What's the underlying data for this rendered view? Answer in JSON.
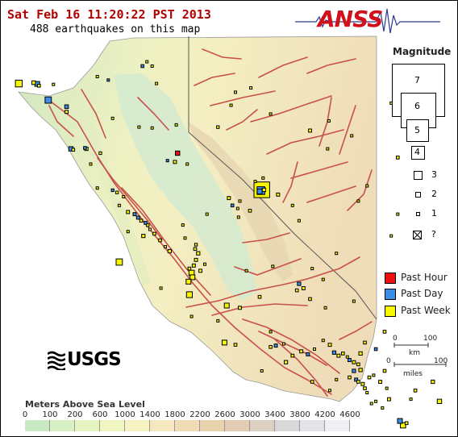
{
  "header": {
    "title": "Sat Feb 16 11:20:22 PST 2013",
    "count_text": "488 earthquakes on this map"
  },
  "logos": {
    "anss": "ANSS",
    "usgs": "USGS"
  },
  "magnitude_legend": {
    "title": "Magnitude",
    "levels": [
      "7",
      "6",
      "5",
      "4",
      "3",
      "2",
      "1"
    ],
    "unknown": "?"
  },
  "age_legend": [
    {
      "label": "Past Hour",
      "color": "#ee1111"
    },
    {
      "label": "Past Day",
      "color": "#3b8ee8"
    },
    {
      "label": "Past Week",
      "color": "#f7f700"
    }
  ],
  "scale": {
    "zero": "0",
    "hundred": "100",
    "km": "km",
    "miles": "miles"
  },
  "elevation": {
    "title": "Meters Above Sea Level",
    "ticks": [
      "0",
      "100",
      "200",
      "600",
      "1000",
      "1400",
      "1800",
      "2200",
      "2600",
      "3000",
      "3400",
      "3800",
      "4200",
      "4600"
    ],
    "colors": [
      "#c9e9c4",
      "#d8efc4",
      "#e6f4c2",
      "#f1f5c2",
      "#f7f2c2",
      "#f6e8be",
      "#efdcb6",
      "#e9d2ae",
      "#e3cdb2",
      "#dcd0c4",
      "#d8d8d8",
      "#e4e4e8",
      "#f0f0f4"
    ]
  },
  "map": {
    "colors": {
      "ocean": "#ffffff",
      "land_low": "#c8e6be",
      "land_mid": "#f3f2c4",
      "land_high": "#ecd8b4",
      "fault": "#c8504a",
      "border": "#555555"
    },
    "quakes": [
      {
        "lon": -124.34,
        "lat": 40.3,
        "mag": 2.8,
        "age": "week"
      },
      {
        "lon": -124.0,
        "lat": 40.32,
        "mag": 1.5,
        "age": "week"
      },
      {
        "lon": -123.92,
        "lat": 40.29,
        "mag": 2.0,
        "age": "day"
      },
      {
        "lon": -123.88,
        "lat": 40.25,
        "mag": 1.2,
        "age": "week"
      },
      {
        "lon": -123.55,
        "lat": 40.28,
        "mag": 1.0,
        "age": "week"
      },
      {
        "lon": -123.67,
        "lat": 39.92,
        "mag": 2.6,
        "age": "day"
      },
      {
        "lon": -123.25,
        "lat": 39.77,
        "mag": 1.5,
        "age": "day"
      },
      {
        "lon": -123.25,
        "lat": 39.65,
        "mag": 1.3,
        "age": "week"
      },
      {
        "lon": -123.15,
        "lat": 38.8,
        "mag": 1.8,
        "age": "day"
      },
      {
        "lon": -123.1,
        "lat": 38.78,
        "mag": 1.2,
        "age": "week"
      },
      {
        "lon": -122.8,
        "lat": 38.8,
        "mag": 1.4,
        "age": "week"
      },
      {
        "lon": -122.83,
        "lat": 38.82,
        "mag": 1.2,
        "age": "day"
      },
      {
        "lon": -122.48,
        "lat": 38.7,
        "mag": 1.1,
        "age": "week"
      },
      {
        "lon": -122.7,
        "lat": 38.45,
        "mag": 1.0,
        "age": "week"
      },
      {
        "lon": -122.55,
        "lat": 40.46,
        "mag": 1.0,
        "age": "week"
      },
      {
        "lon": -122.3,
        "lat": 40.38,
        "mag": 1.0,
        "age": "day"
      },
      {
        "lon": -121.52,
        "lat": 40.7,
        "mag": 1.2,
        "age": "day"
      },
      {
        "lon": -121.42,
        "lat": 40.8,
        "mag": 1.0,
        "age": "week"
      },
      {
        "lon": -121.3,
        "lat": 40.7,
        "mag": 1.0,
        "age": "week"
      },
      {
        "lon": -121.2,
        "lat": 40.3,
        "mag": 1.0,
        "age": "week"
      },
      {
        "lon": -122.2,
        "lat": 39.5,
        "mag": 1.0,
        "age": "week"
      },
      {
        "lon": -121.6,
        "lat": 39.3,
        "mag": 1.0,
        "age": "week"
      },
      {
        "lon": -121.3,
        "lat": 39.28,
        "mag": 1.0,
        "age": "week"
      },
      {
        "lon": -120.75,
        "lat": 39.35,
        "mag": 1.0,
        "age": "week"
      },
      {
        "lon": -119.8,
        "lat": 39.3,
        "mag": 1.1,
        "age": "week"
      },
      {
        "lon": -119.4,
        "lat": 40.1,
        "mag": 1.0,
        "age": "week"
      },
      {
        "lon": -119.5,
        "lat": 39.8,
        "mag": 1.0,
        "age": "week"
      },
      {
        "lon": -118.6,
        "lat": 39.6,
        "mag": 1.0,
        "age": "week"
      },
      {
        "lon": -117.7,
        "lat": 39.22,
        "mag": 1.3,
        "age": "week"
      },
      {
        "lon": -117.27,
        "lat": 39.44,
        "mag": 1.0,
        "age": "week"
      },
      {
        "lon": -117.3,
        "lat": 38.8,
        "mag": 1.0,
        "age": "week"
      },
      {
        "lon": -115.85,
        "lat": 39.85,
        "mag": 1.0,
        "age": "week"
      },
      {
        "lon": -115.75,
        "lat": 39.72,
        "mag": 1.0,
        "age": "week"
      },
      {
        "lon": -115.7,
        "lat": 38.6,
        "mag": 1.2,
        "age": "week"
      },
      {
        "lon": -116.4,
        "lat": 37.95,
        "mag": 1.0,
        "age": "week"
      },
      {
        "lon": -116.6,
        "lat": 37.6,
        "mag": 1.0,
        "age": "week"
      },
      {
        "lon": -120.72,
        "lat": 38.7,
        "mag": 1.8,
        "age": "hour"
      },
      {
        "lon": -120.95,
        "lat": 38.53,
        "mag": 1.0,
        "age": "day"
      },
      {
        "lon": -120.78,
        "lat": 38.5,
        "mag": 1.3,
        "age": "week"
      },
      {
        "lon": -120.5,
        "lat": 38.45,
        "mag": 1.0,
        "age": "week"
      },
      {
        "lon": -118.8,
        "lat": 37.86,
        "mag": 4.4,
        "age": "week"
      },
      {
        "lon": -118.82,
        "lat": 37.84,
        "mag": 3.1,
        "age": "day"
      },
      {
        "lon": -118.85,
        "lat": 37.82,
        "mag": 2.0,
        "age": "day"
      },
      {
        "lon": -118.75,
        "lat": 37.86,
        "mag": 1.4,
        "age": "week"
      },
      {
        "lon": -118.43,
        "lat": 37.75,
        "mag": 1.3,
        "age": "week"
      },
      {
        "lon": -118.77,
        "lat": 38.13,
        "mag": 1.0,
        "age": "week"
      },
      {
        "lon": -118.95,
        "lat": 38.05,
        "mag": 1.0,
        "age": "week"
      },
      {
        "lon": -118.1,
        "lat": 37.5,
        "mag": 1.0,
        "age": "week"
      },
      {
        "lon": -119.55,
        "lat": 37.67,
        "mag": 1.3,
        "age": "week"
      },
      {
        "lon": -119.3,
        "lat": 37.6,
        "mag": 1.0,
        "age": "week"
      },
      {
        "lon": -119.47,
        "lat": 37.5,
        "mag": 1.2,
        "age": "day"
      },
      {
        "lon": -119.35,
        "lat": 37.43,
        "mag": 1.0,
        "age": "week"
      },
      {
        "lon": -119.07,
        "lat": 37.38,
        "mag": 1.2,
        "age": "week"
      },
      {
        "lon": -119.33,
        "lat": 37.23,
        "mag": 1.0,
        "age": "week"
      },
      {
        "lon": -122.55,
        "lat": 37.9,
        "mag": 1.0,
        "age": "week"
      },
      {
        "lon": -122.2,
        "lat": 37.85,
        "mag": 1.1,
        "age": "day"
      },
      {
        "lon": -122.1,
        "lat": 37.8,
        "mag": 1.1,
        "age": "week"
      },
      {
        "lon": -121.95,
        "lat": 37.7,
        "mag": 1.0,
        "age": "week"
      },
      {
        "lon": -122.05,
        "lat": 37.5,
        "mag": 1.0,
        "age": "week"
      },
      {
        "lon": -121.85,
        "lat": 37.35,
        "mag": 1.3,
        "age": "week"
      },
      {
        "lon": -121.7,
        "lat": 37.3,
        "mag": 1.3,
        "age": "day"
      },
      {
        "lon": -121.62,
        "lat": 37.22,
        "mag": 1.3,
        "age": "day"
      },
      {
        "lon": -121.55,
        "lat": 37.15,
        "mag": 1.2,
        "age": "week"
      },
      {
        "lon": -121.45,
        "lat": 37.1,
        "mag": 1.2,
        "age": "day"
      },
      {
        "lon": -121.4,
        "lat": 37.05,
        "mag": 1.2,
        "age": "week"
      },
      {
        "lon": -121.35,
        "lat": 36.95,
        "mag": 1.0,
        "age": "week"
      },
      {
        "lon": -121.25,
        "lat": 36.85,
        "mag": 1.2,
        "age": "week"
      },
      {
        "lon": -121.12,
        "lat": 36.7,
        "mag": 1.2,
        "age": "week"
      },
      {
        "lon": -121.0,
        "lat": 36.55,
        "mag": 1.0,
        "age": "week"
      },
      {
        "lon": -120.9,
        "lat": 36.45,
        "mag": 1.4,
        "age": "week"
      },
      {
        "lon": -121.85,
        "lat": 36.9,
        "mag": 1.0,
        "age": "week"
      },
      {
        "lon": -121.5,
        "lat": 36.8,
        "mag": 1.4,
        "age": "week"
      },
      {
        "lon": -122.05,
        "lat": 36.2,
        "mag": 2.6,
        "age": "week"
      },
      {
        "lon": -120.55,
        "lat": 36.75,
        "mag": 1.0,
        "age": "week"
      },
      {
        "lon": -120.3,
        "lat": 36.6,
        "mag": 1.1,
        "age": "week"
      },
      {
        "lon": -120.32,
        "lat": 36.5,
        "mag": 1.2,
        "age": "week"
      },
      {
        "lon": -120.25,
        "lat": 36.4,
        "mag": 1.4,
        "age": "week"
      },
      {
        "lon": -120.3,
        "lat": 36.25,
        "mag": 1.3,
        "age": "week"
      },
      {
        "lon": -120.35,
        "lat": 36.12,
        "mag": 1.3,
        "age": "week"
      },
      {
        "lon": -120.45,
        "lat": 36.05,
        "mag": 1.2,
        "age": "week"
      },
      {
        "lon": -120.2,
        "lat": 36.0,
        "mag": 1.3,
        "age": "week"
      },
      {
        "lon": -120.1,
        "lat": 36.15,
        "mag": 1.0,
        "age": "week"
      },
      {
        "lon": -120.4,
        "lat": 35.95,
        "mag": 2.2,
        "age": "week"
      },
      {
        "lon": -120.38,
        "lat": 35.85,
        "mag": 2.0,
        "age": "week"
      },
      {
        "lon": -120.47,
        "lat": 35.75,
        "mag": 2.0,
        "age": "week"
      },
      {
        "lon": -121.1,
        "lat": 35.6,
        "mag": 1.0,
        "age": "week"
      },
      {
        "lon": -120.45,
        "lat": 35.45,
        "mag": 2.4,
        "age": "week"
      },
      {
        "lon": -119.15,
        "lat": 36.0,
        "mag": 1.0,
        "age": "week"
      },
      {
        "lon": -119.6,
        "lat": 35.2,
        "mag": 2.0,
        "age": "week"
      },
      {
        "lon": -119.3,
        "lat": 35.15,
        "mag": 1.3,
        "age": "week"
      },
      {
        "lon": -118.85,
        "lat": 35.4,
        "mag": 1.2,
        "age": "week"
      },
      {
        "lon": -120.4,
        "lat": 34.95,
        "mag": 1.0,
        "age": "week"
      },
      {
        "lon": -119.65,
        "lat": 34.35,
        "mag": 2.0,
        "age": "week"
      },
      {
        "lon": -119.4,
        "lat": 34.3,
        "mag": 1.2,
        "age": "week"
      },
      {
        "lon": -118.6,
        "lat": 34.25,
        "mag": 1.2,
        "age": "week"
      },
      {
        "lon": -118.48,
        "lat": 34.28,
        "mag": 1.3,
        "age": "day"
      },
      {
        "lon": -118.3,
        "lat": 34.32,
        "mag": 1.0,
        "age": "week"
      },
      {
        "lon": -118.1,
        "lat": 34.05,
        "mag": 1.2,
        "age": "week"
      },
      {
        "lon": -117.9,
        "lat": 34.15,
        "mag": 1.3,
        "age": "week"
      },
      {
        "lon": -117.75,
        "lat": 34.08,
        "mag": 1.3,
        "age": "day"
      },
      {
        "lon": -117.6,
        "lat": 34.2,
        "mag": 1.0,
        "age": "week"
      },
      {
        "lon": -117.4,
        "lat": 34.4,
        "mag": 1.0,
        "age": "week"
      },
      {
        "lon": -117.25,
        "lat": 34.3,
        "mag": 1.3,
        "age": "week"
      },
      {
        "lon": -117.15,
        "lat": 34.12,
        "mag": 1.4,
        "age": "day"
      },
      {
        "lon": -117.05,
        "lat": 34.05,
        "mag": 1.3,
        "age": "week"
      },
      {
        "lon": -116.95,
        "lat": 34.1,
        "mag": 1.2,
        "age": "week"
      },
      {
        "lon": -116.85,
        "lat": 34.02,
        "mag": 1.0,
        "age": "week"
      },
      {
        "lon": -116.8,
        "lat": 33.95,
        "mag": 1.3,
        "age": "day"
      },
      {
        "lon": -116.7,
        "lat": 33.9,
        "mag": 1.3,
        "age": "week"
      },
      {
        "lon": -116.6,
        "lat": 33.85,
        "mag": 1.2,
        "age": "week"
      },
      {
        "lon": -116.55,
        "lat": 33.72,
        "mag": 1.4,
        "age": "week"
      },
      {
        "lon": -116.7,
        "lat": 33.7,
        "mag": 1.4,
        "age": "day"
      },
      {
        "lon": -116.8,
        "lat": 33.55,
        "mag": 1.2,
        "age": "week"
      },
      {
        "lon": -116.65,
        "lat": 33.5,
        "mag": 1.3,
        "age": "day"
      },
      {
        "lon": -116.6,
        "lat": 33.45,
        "mag": 1.2,
        "age": "week"
      },
      {
        "lon": -116.5,
        "lat": 33.4,
        "mag": 1.3,
        "age": "week"
      },
      {
        "lon": -116.45,
        "lat": 33.3,
        "mag": 1.2,
        "age": "week"
      },
      {
        "lon": -116.4,
        "lat": 33.2,
        "mag": 1.0,
        "age": "week"
      },
      {
        "lon": -116.35,
        "lat": 33.55,
        "mag": 1.2,
        "age": "week"
      },
      {
        "lon": -116.25,
        "lat": 33.6,
        "mag": 1.0,
        "age": "week"
      },
      {
        "lon": -116.1,
        "lat": 33.45,
        "mag": 1.3,
        "age": "week"
      },
      {
        "lon": -116.0,
        "lat": 33.7,
        "mag": 1.2,
        "age": "week"
      },
      {
        "lon": -115.95,
        "lat": 33.3,
        "mag": 1.0,
        "age": "week"
      },
      {
        "lon": -115.9,
        "lat": 33.05,
        "mag": 1.3,
        "age": "week"
      },
      {
        "lon": -116.55,
        "lat": 34.1,
        "mag": 1.4,
        "age": "week"
      },
      {
        "lon": -116.45,
        "lat": 34.35,
        "mag": 1.2,
        "age": "week"
      },
      {
        "lon": -116.2,
        "lat": 34.2,
        "mag": 1.2,
        "age": "day"
      },
      {
        "lon": -116.0,
        "lat": 34.6,
        "mag": 1.2,
        "age": "week"
      },
      {
        "lon": -116.7,
        "lat": 35.3,
        "mag": 1.0,
        "age": "week"
      },
      {
        "lon": -117.4,
        "lat": 35.8,
        "mag": 1.0,
        "age": "week"
      },
      {
        "lon": -117.95,
        "lat": 35.7,
        "mag": 1.4,
        "age": "day"
      },
      {
        "lon": -117.85,
        "lat": 35.6,
        "mag": 1.3,
        "age": "week"
      },
      {
        "lon": -118.0,
        "lat": 35.55,
        "mag": 1.2,
        "age": "week"
      },
      {
        "lon": -117.7,
        "lat": 35.35,
        "mag": 1.2,
        "age": "week"
      },
      {
        "lon": -117.65,
        "lat": 36.05,
        "mag": 1.0,
        "age": "week"
      },
      {
        "lon": -117.35,
        "lat": 35.15,
        "mag": 1.0,
        "age": "week"
      },
      {
        "lon": -118.25,
        "lat": 33.9,
        "mag": 1.4,
        "age": "week"
      },
      {
        "lon": -117.65,
        "lat": 33.45,
        "mag": 1.2,
        "age": "week"
      },
      {
        "lon": -117.1,
        "lat": 33.5,
        "mag": 1.0,
        "age": "week"
      },
      {
        "lon": -117.25,
        "lat": 33.25,
        "mag": 1.0,
        "age": "week"
      },
      {
        "lon": -116.3,
        "lat": 32.95,
        "mag": 1.0,
        "age": "week"
      },
      {
        "lon": -116.05,
        "lat": 32.85,
        "mag": 1.0,
        "age": "week"
      },
      {
        "lon": -115.65,
        "lat": 32.55,
        "mag": 2.0,
        "age": "day"
      },
      {
        "lon": -115.58,
        "lat": 32.45,
        "mag": 2.2,
        "age": "week"
      },
      {
        "lon": -115.5,
        "lat": 32.5,
        "mag": 1.2,
        "age": "week"
      },
      {
        "lon": -115.4,
        "lat": 33.05,
        "mag": 1.0,
        "age": "week"
      },
      {
        "lon": -115.3,
        "lat": 33.25,
        "mag": 1.2,
        "age": "week"
      },
      {
        "lon": -114.9,
        "lat": 33.45,
        "mag": 1.4,
        "age": "week"
      },
      {
        "lon": -114.75,
        "lat": 33.0,
        "mag": 1.8,
        "age": "week"
      },
      {
        "lon": -116.2,
        "lat": 33.0,
        "mag": 1.0,
        "age": "week"
      },
      {
        "lon": -118.6,
        "lat": 34.6,
        "mag": 1.0,
        "age": "week"
      },
      {
        "lon": -118.8,
        "lat": 33.7,
        "mag": 1.0,
        "age": "week"
      },
      {
        "lon": -119.8,
        "lat": 34.85,
        "mag": 1.0,
        "age": "week"
      },
      {
        "lon": -120.05,
        "lat": 37.3,
        "mag": 1.0,
        "age": "week"
      },
      {
        "lon": -120.6,
        "lat": 37.05,
        "mag": 1.0,
        "age": "week"
      },
      {
        "lon": -118.55,
        "lat": 36.1,
        "mag": 1.0,
        "age": "week"
      },
      {
        "lon": -117.95,
        "lat": 37.15,
        "mag": 1.0,
        "age": "week"
      },
      {
        "lon": -117.1,
        "lat": 36.4,
        "mag": 1.0,
        "age": "week"
      },
      {
        "lon": -115.7,
        "lat": 37.3,
        "mag": 1.0,
        "age": "week"
      },
      {
        "lon": -116.75,
        "lat": 39.1,
        "mag": 1.0,
        "age": "week"
      },
      {
        "lon": -119.05,
        "lat": 40.2,
        "mag": 1.0,
        "age": "week"
      },
      {
        "lon": -115.85,
        "lat": 36.8,
        "mag": 1.0,
        "age": "week"
      }
    ]
  }
}
